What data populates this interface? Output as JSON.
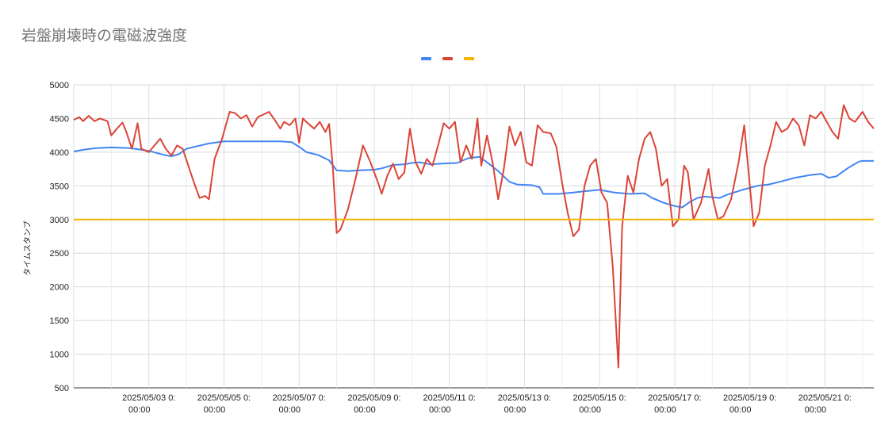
{
  "chart_data": {
    "type": "line",
    "title": "岩盤崩壊時の電磁波強度",
    "ylabel": "タイムスタンプ",
    "xlabel": "",
    "ylim": [
      500,
      5000
    ],
    "yticks": [
      "500",
      "1000",
      "1500",
      "2000",
      "2500",
      "3000",
      "3500",
      "4000",
      "4500",
      "5000"
    ],
    "ytick_values": [
      500,
      1000,
      1500,
      2000,
      2500,
      3000,
      3500,
      4000,
      4500,
      5000
    ],
    "xlim": [
      1,
      22.3
    ],
    "xticks": [
      {
        "day": 3,
        "line1": "2025/05/03 0:",
        "line2": "00:00"
      },
      {
        "day": 5,
        "line1": "2025/05/05 0:",
        "line2": "00:00"
      },
      {
        "day": 7,
        "line1": "2025/05/07 0:",
        "line2": "00:00"
      },
      {
        "day": 9,
        "line1": "2025/05/09 0:",
        "line2": "00:00"
      },
      {
        "day": 11,
        "line1": "2025/05/11 0:",
        "line2": "00:00"
      },
      {
        "day": 13,
        "line1": "2025/05/13 0:",
        "line2": "00:00"
      },
      {
        "day": 15,
        "line1": "2025/05/15 0:",
        "line2": "00:00"
      },
      {
        "day": 17,
        "line1": "2025/05/17 0:",
        "line2": "00:00"
      },
      {
        "day": 19,
        "line1": "2025/05/19 0:",
        "line2": "00:00"
      },
      {
        "day": 21,
        "line1": "2025/05/21 0:",
        "line2": "00:00"
      }
    ],
    "x_unit": "2025/05 day",
    "grid": true,
    "legend_position": "top",
    "series": [
      {
        "color": "#4285f4",
        "points": [
          [
            1.0,
            4010
          ],
          [
            1.3,
            4040
          ],
          [
            1.6,
            4060
          ],
          [
            2.0,
            4070
          ],
          [
            2.5,
            4060
          ],
          [
            3.0,
            4020
          ],
          [
            3.4,
            3960
          ],
          [
            3.6,
            3940
          ],
          [
            3.8,
            3970
          ],
          [
            4.0,
            4050
          ],
          [
            4.3,
            4090
          ],
          [
            4.6,
            4130
          ],
          [
            5.0,
            4160
          ],
          [
            5.5,
            4160
          ],
          [
            6.0,
            4160
          ],
          [
            6.5,
            4160
          ],
          [
            6.8,
            4150
          ],
          [
            7.0,
            4080
          ],
          [
            7.2,
            4000
          ],
          [
            7.5,
            3960
          ],
          [
            7.8,
            3880
          ],
          [
            8.0,
            3730
          ],
          [
            8.3,
            3720
          ],
          [
            8.6,
            3730
          ],
          [
            9.0,
            3740
          ],
          [
            9.2,
            3760
          ],
          [
            9.5,
            3810
          ],
          [
            9.8,
            3820
          ],
          [
            10.0,
            3840
          ],
          [
            10.2,
            3850
          ],
          [
            10.5,
            3820
          ],
          [
            10.8,
            3830
          ],
          [
            11.2,
            3840
          ],
          [
            11.5,
            3910
          ],
          [
            11.8,
            3930
          ],
          [
            12.0,
            3850
          ],
          [
            12.3,
            3720
          ],
          [
            12.6,
            3560
          ],
          [
            12.8,
            3520
          ],
          [
            13.2,
            3510
          ],
          [
            13.4,
            3480
          ],
          [
            13.5,
            3380
          ],
          [
            13.9,
            3380
          ],
          [
            14.3,
            3400
          ],
          [
            14.6,
            3420
          ],
          [
            15.0,
            3440
          ],
          [
            15.4,
            3400
          ],
          [
            15.8,
            3380
          ],
          [
            16.2,
            3390
          ],
          [
            16.4,
            3320
          ],
          [
            16.7,
            3250
          ],
          [
            17.0,
            3200
          ],
          [
            17.2,
            3180
          ],
          [
            17.4,
            3260
          ],
          [
            17.6,
            3320
          ],
          [
            17.8,
            3340
          ],
          [
            18.0,
            3330
          ],
          [
            18.2,
            3320
          ],
          [
            18.4,
            3370
          ],
          [
            18.8,
            3440
          ],
          [
            19.2,
            3500
          ],
          [
            19.5,
            3520
          ],
          [
            19.8,
            3560
          ],
          [
            20.2,
            3620
          ],
          [
            20.6,
            3660
          ],
          [
            20.9,
            3680
          ],
          [
            21.1,
            3620
          ],
          [
            21.3,
            3640
          ],
          [
            21.6,
            3760
          ],
          [
            21.9,
            3860
          ],
          [
            22.0,
            3870
          ],
          [
            22.3,
            3870
          ]
        ]
      },
      {
        "color": "#db4437",
        "points": [
          [
            1.0,
            4480
          ],
          [
            1.15,
            4520
          ],
          [
            1.25,
            4460
          ],
          [
            1.4,
            4540
          ],
          [
            1.55,
            4460
          ],
          [
            1.7,
            4500
          ],
          [
            1.9,
            4460
          ],
          [
            2.0,
            4250
          ],
          [
            2.15,
            4350
          ],
          [
            2.3,
            4440
          ],
          [
            2.4,
            4300
          ],
          [
            2.55,
            4050
          ],
          [
            2.7,
            4430
          ],
          [
            2.8,
            4050
          ],
          [
            3.0,
            4000
          ],
          [
            3.15,
            4100
          ],
          [
            3.3,
            4200
          ],
          [
            3.45,
            4050
          ],
          [
            3.6,
            3950
          ],
          [
            3.75,
            4100
          ],
          [
            3.9,
            4050
          ],
          [
            4.05,
            3800
          ],
          [
            4.2,
            3550
          ],
          [
            4.35,
            3320
          ],
          [
            4.5,
            3350
          ],
          [
            4.6,
            3300
          ],
          [
            4.75,
            3900
          ],
          [
            4.95,
            4200
          ],
          [
            5.15,
            4600
          ],
          [
            5.3,
            4580
          ],
          [
            5.45,
            4500
          ],
          [
            5.6,
            4550
          ],
          [
            5.75,
            4380
          ],
          [
            5.9,
            4520
          ],
          [
            6.05,
            4560
          ],
          [
            6.2,
            4600
          ],
          [
            6.35,
            4480
          ],
          [
            6.5,
            4350
          ],
          [
            6.6,
            4450
          ],
          [
            6.75,
            4400
          ],
          [
            6.9,
            4500
          ],
          [
            7.0,
            4140
          ],
          [
            7.1,
            4500
          ],
          [
            7.25,
            4420
          ],
          [
            7.4,
            4350
          ],
          [
            7.55,
            4450
          ],
          [
            7.7,
            4300
          ],
          [
            7.8,
            4420
          ],
          [
            7.9,
            3750
          ],
          [
            8.0,
            2800
          ],
          [
            8.1,
            2850
          ],
          [
            8.3,
            3150
          ],
          [
            8.5,
            3600
          ],
          [
            8.7,
            4100
          ],
          [
            8.9,
            3850
          ],
          [
            9.1,
            3550
          ],
          [
            9.2,
            3380
          ],
          [
            9.35,
            3650
          ],
          [
            9.5,
            3830
          ],
          [
            9.65,
            3600
          ],
          [
            9.8,
            3700
          ],
          [
            9.95,
            4350
          ],
          [
            10.1,
            3850
          ],
          [
            10.25,
            3680
          ],
          [
            10.4,
            3900
          ],
          [
            10.55,
            3800
          ],
          [
            10.7,
            4100
          ],
          [
            10.85,
            4430
          ],
          [
            11.0,
            4350
          ],
          [
            11.15,
            4450
          ],
          [
            11.3,
            3850
          ],
          [
            11.45,
            4100
          ],
          [
            11.6,
            3900
          ],
          [
            11.75,
            4500
          ],
          [
            11.85,
            3800
          ],
          [
            12.0,
            4250
          ],
          [
            12.15,
            3850
          ],
          [
            12.3,
            3300
          ],
          [
            12.45,
            3750
          ],
          [
            12.6,
            4380
          ],
          [
            12.75,
            4100
          ],
          [
            12.9,
            4300
          ],
          [
            13.05,
            3850
          ],
          [
            13.2,
            3800
          ],
          [
            13.35,
            4400
          ],
          [
            13.5,
            4300
          ],
          [
            13.7,
            4280
          ],
          [
            13.85,
            4080
          ],
          [
            14.0,
            3550
          ],
          [
            14.15,
            3100
          ],
          [
            14.3,
            2750
          ],
          [
            14.45,
            2850
          ],
          [
            14.6,
            3500
          ],
          [
            14.75,
            3800
          ],
          [
            14.9,
            3900
          ],
          [
            15.05,
            3400
          ],
          [
            15.2,
            3250
          ],
          [
            15.35,
            2300
          ],
          [
            15.5,
            800
          ],
          [
            15.6,
            2900
          ],
          [
            15.75,
            3650
          ],
          [
            15.9,
            3400
          ],
          [
            16.05,
            3900
          ],
          [
            16.2,
            4200
          ],
          [
            16.35,
            4300
          ],
          [
            16.5,
            4050
          ],
          [
            16.65,
            3500
          ],
          [
            16.8,
            3600
          ],
          [
            16.95,
            2900
          ],
          [
            17.1,
            3000
          ],
          [
            17.25,
            3800
          ],
          [
            17.35,
            3700
          ],
          [
            17.5,
            3000
          ],
          [
            17.7,
            3250
          ],
          [
            17.9,
            3750
          ],
          [
            18.0,
            3350
          ],
          [
            18.15,
            3000
          ],
          [
            18.3,
            3050
          ],
          [
            18.5,
            3300
          ],
          [
            18.7,
            3850
          ],
          [
            18.85,
            4400
          ],
          [
            18.95,
            3800
          ],
          [
            19.1,
            2900
          ],
          [
            19.25,
            3100
          ],
          [
            19.4,
            3800
          ],
          [
            19.55,
            4100
          ],
          [
            19.7,
            4450
          ],
          [
            19.85,
            4300
          ],
          [
            20.0,
            4350
          ],
          [
            20.15,
            4500
          ],
          [
            20.3,
            4400
          ],
          [
            20.45,
            4100
          ],
          [
            20.6,
            4550
          ],
          [
            20.75,
            4500
          ],
          [
            20.9,
            4600
          ],
          [
            21.05,
            4450
          ],
          [
            21.2,
            4300
          ],
          [
            21.35,
            4200
          ],
          [
            21.5,
            4700
          ],
          [
            21.65,
            4500
          ],
          [
            21.8,
            4450
          ],
          [
            22.0,
            4600
          ],
          [
            22.15,
            4450
          ],
          [
            22.3,
            4350
          ]
        ]
      },
      {
        "color": "#f4b400",
        "points": [
          [
            1.0,
            3000
          ],
          [
            22.3,
            3000
          ]
        ]
      }
    ]
  }
}
